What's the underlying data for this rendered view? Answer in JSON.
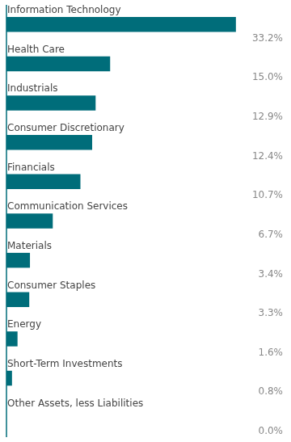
{
  "chart_data": {
    "type": "bar",
    "orientation": "horizontal",
    "categories": [
      "Information Technology",
      "Health Care",
      "Industrials",
      "Consumer Discretionary",
      "Financials",
      "Communication Services",
      "Materials",
      "Consumer Staples",
      "Energy",
      "Short-Term Investments",
      "Other Assets, less Liabilities"
    ],
    "values": [
      33.2,
      15.0,
      12.9,
      12.4,
      10.7,
      6.7,
      3.4,
      3.3,
      1.6,
      0.8,
      0.0
    ],
    "value_labels": [
      "33.2%",
      "15.0%",
      "12.9%",
      "12.4%",
      "10.7%",
      "6.7%",
      "3.4%",
      "3.3%",
      "1.6%",
      "0.8%",
      "0.0%"
    ],
    "data_labels": true,
    "color": "#006d7a",
    "xlim": [
      0,
      40
    ],
    "tick_labels": false,
    "grid": false
  }
}
